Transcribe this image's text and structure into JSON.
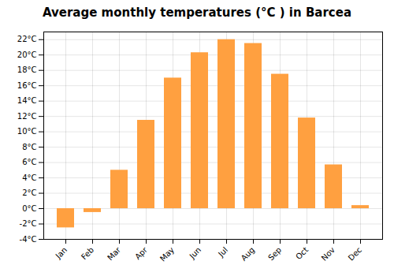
{
  "chart_data": {
    "type": "bar",
    "title": "Average monthly temperatures (°C ) in Barcea",
    "categories": [
      "Jan",
      "Feb",
      "Mar",
      "Apr",
      "May",
      "Jun",
      "Jul",
      "Aug",
      "Sep",
      "Oct",
      "Nov",
      "Dec"
    ],
    "values": [
      -2.5,
      -0.5,
      5.0,
      11.5,
      17.0,
      20.3,
      22.0,
      21.5,
      17.5,
      11.8,
      5.7,
      0.4
    ],
    "color": "#FFA040",
    "ylim": [
      -4,
      23
    ],
    "yticks": [
      {
        "value": -4,
        "label": "-4°C"
      },
      {
        "value": -2,
        "label": "-2°C"
      },
      {
        "value": 0,
        "label": "0°C"
      },
      {
        "value": 2,
        "label": "2°C"
      },
      {
        "value": 4,
        "label": "4°C"
      },
      {
        "value": 6,
        "label": "6°C"
      },
      {
        "value": 8,
        "label": "8°C"
      },
      {
        "value": 10,
        "label": "10°C"
      },
      {
        "value": 12,
        "label": "12°C"
      },
      {
        "value": 14,
        "label": "14°C"
      },
      {
        "value": 16,
        "label": "16°C"
      },
      {
        "value": 18,
        "label": "18°C"
      },
      {
        "value": 20,
        "label": "20°C"
      },
      {
        "value": 22,
        "label": "22°C"
      }
    ],
    "grid": true
  }
}
